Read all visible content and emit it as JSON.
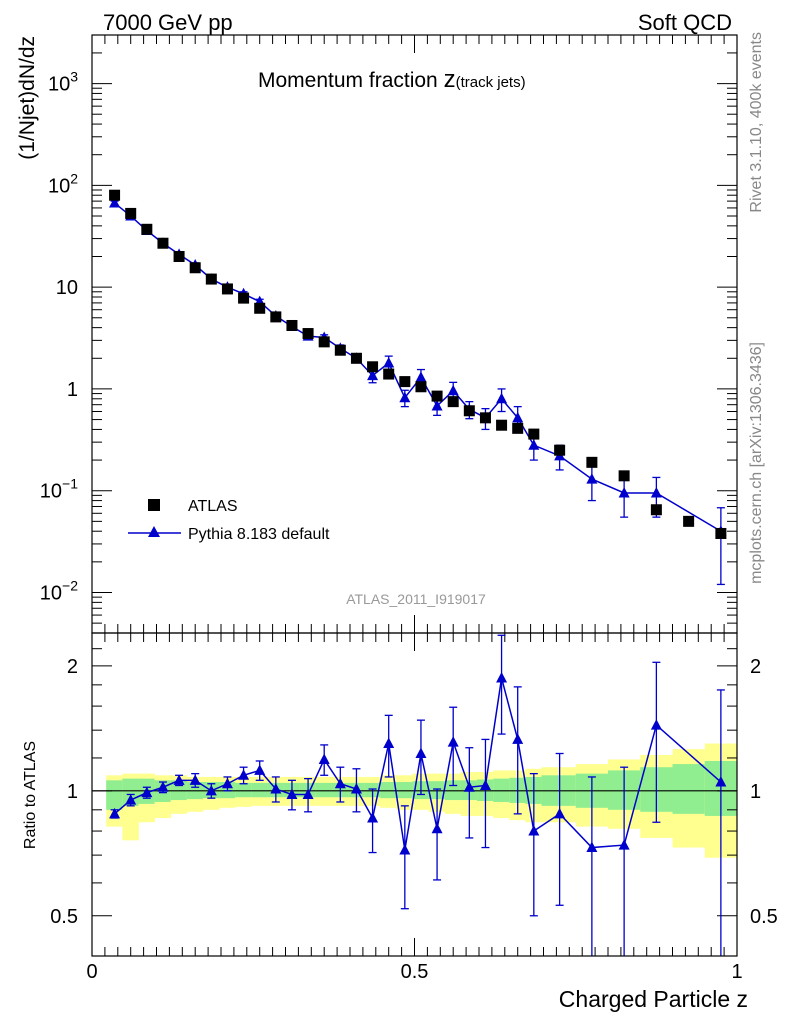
{
  "header": {
    "left": "7000 GeV pp",
    "right": "Soft QCD"
  },
  "side": {
    "rivet": "Rivet 3.1.10,  400k events",
    "mcplots": "mcplots.cern.ch [arXiv:1306.3436]"
  },
  "chart_data": {
    "type": "scatter",
    "title_main": "Momentum fraction ",
    "title_z": "z",
    "title_sub": "(track jets)",
    "ylabel": "(1/Njet)dN/dz",
    "xlabel": "Charged Particle z",
    "ratio_ylabel": "Ratio to ATLAS",
    "watermark": "ATLAS_2011_I919017",
    "xlim": [
      0,
      1
    ],
    "ylim_log": [
      0.004,
      3000
    ],
    "ratio_ylim": [
      0.4,
      2.4
    ],
    "x_ticks": [
      {
        "v": 0,
        "label": "0"
      },
      {
        "v": 0.5,
        "label": "0.5"
      },
      {
        "v": 1,
        "label": "1"
      }
    ],
    "y_ticks": [
      {
        "v": 0.01,
        "base": "10",
        "exp": "−2"
      },
      {
        "v": 0.1,
        "base": "10",
        "exp": "−1"
      },
      {
        "v": 1,
        "base": "1",
        "exp": ""
      },
      {
        "v": 10,
        "base": "10",
        "exp": ""
      },
      {
        "v": 100,
        "base": "10",
        "exp": "2"
      },
      {
        "v": 1000,
        "base": "10",
        "exp": "3"
      }
    ],
    "ratio_ticks": [
      {
        "v": 0.5,
        "label": "0.5"
      },
      {
        "v": 1,
        "label": "1"
      },
      {
        "v": 2,
        "label": "2"
      }
    ],
    "legend": {
      "atlas": "ATLAS",
      "pythia": "Pythia 8.183 default",
      "atlas_color": "#000000",
      "pythia_color": "#0000cc"
    },
    "atlas": {
      "name": "ATLAS",
      "x": [
        0.035,
        0.06,
        0.085,
        0.11,
        0.135,
        0.16,
        0.185,
        0.21,
        0.235,
        0.26,
        0.285,
        0.31,
        0.335,
        0.36,
        0.385,
        0.41,
        0.435,
        0.46,
        0.485,
        0.51,
        0.535,
        0.56,
        0.585,
        0.61,
        0.635,
        0.66,
        0.685,
        0.725,
        0.775,
        0.825,
        0.875,
        0.925,
        0.975
      ],
      "y": [
        80,
        53,
        37,
        27,
        20,
        15.5,
        12,
        9.6,
        7.8,
        6.2,
        5.1,
        4.2,
        3.5,
        2.9,
        2.4,
        2.0,
        1.65,
        1.4,
        1.18,
        1.05,
        0.85,
        0.75,
        0.61,
        0.52,
        0.44,
        0.41,
        0.36,
        0.25,
        0.19,
        0.14,
        0.065,
        0.05,
        0.038
      ]
    },
    "pythia": {
      "name": "Pythia 8.183 default",
      "x": [
        0.035,
        0.06,
        0.085,
        0.11,
        0.135,
        0.16,
        0.185,
        0.21,
        0.235,
        0.26,
        0.285,
        0.31,
        0.335,
        0.36,
        0.385,
        0.41,
        0.435,
        0.46,
        0.485,
        0.51,
        0.535,
        0.56,
        0.585,
        0.61,
        0.635,
        0.66,
        0.685,
        0.725,
        0.775,
        0.825,
        0.875,
        0.975
      ],
      "y": [
        67,
        50,
        36,
        27,
        21,
        16.5,
        12,
        10,
        8.6,
        7.2,
        5.2,
        4.1,
        3.3,
        3.2,
        2.5,
        2.0,
        1.35,
        1.8,
        0.82,
        1.3,
        0.68,
        0.96,
        0.63,
        0.52,
        0.8,
        0.52,
        0.28,
        0.22,
        0.13,
        0.095,
        0.095,
        0.04
      ],
      "err_lo": [
        3,
        2,
        1.5,
        1,
        1,
        0.8,
        0.5,
        0.5,
        0.4,
        0.4,
        0.3,
        0.2,
        0.2,
        0.2,
        0.2,
        0.2,
        0.2,
        0.3,
        0.15,
        0.25,
        0.13,
        0.2,
        0.12,
        0.12,
        0.2,
        0.15,
        0.08,
        0.06,
        0.05,
        0.04,
        0.04,
        0.028
      ],
      "err_hi": [
        3,
        2,
        1.5,
        1,
        1,
        0.8,
        0.5,
        0.5,
        0.4,
        0.4,
        0.3,
        0.2,
        0.2,
        0.2,
        0.2,
        0.2,
        0.2,
        0.3,
        0.15,
        0.25,
        0.13,
        0.2,
        0.12,
        0.12,
        0.2,
        0.15,
        0.08,
        0.06,
        0.05,
        0.04,
        0.04,
        0.028
      ]
    },
    "ratio": {
      "y": [
        0.88,
        0.95,
        0.99,
        1.02,
        1.06,
        1.06,
        1.0,
        1.04,
        1.09,
        1.12,
        1.01,
        0.98,
        0.98,
        1.19,
        1.04,
        1.01,
        0.86,
        1.3,
        0.72,
        1.23,
        0.81,
        1.31,
        1.02,
        1.03,
        1.87,
        1.33,
        0.8,
        0.88,
        0.73,
        0.74,
        1.44,
        1.05
      ],
      "err_lo": [
        0.02,
        0.03,
        0.03,
        0.03,
        0.03,
        0.04,
        0.04,
        0.04,
        0.05,
        0.06,
        0.07,
        0.08,
        0.09,
        0.1,
        0.1,
        0.12,
        0.15,
        0.22,
        0.2,
        0.25,
        0.2,
        0.28,
        0.25,
        0.3,
        0.5,
        0.45,
        0.3,
        0.35,
        0.35,
        0.4,
        0.6,
        0.7
      ],
      "err_hi": [
        0.02,
        0.03,
        0.03,
        0.03,
        0.03,
        0.04,
        0.04,
        0.04,
        0.05,
        0.06,
        0.07,
        0.08,
        0.09,
        0.1,
        0.1,
        0.12,
        0.15,
        0.22,
        0.2,
        0.25,
        0.2,
        0.28,
        0.25,
        0.3,
        0.5,
        0.45,
        0.3,
        0.35,
        0.35,
        0.4,
        0.6,
        0.7
      ]
    },
    "bands": {
      "x_edges": [
        0.022,
        0.047,
        0.072,
        0.097,
        0.122,
        0.147,
        0.172,
        0.197,
        0.222,
        0.247,
        0.272,
        0.297,
        0.322,
        0.347,
        0.372,
        0.397,
        0.422,
        0.447,
        0.472,
        0.497,
        0.522,
        0.547,
        0.572,
        0.597,
        0.622,
        0.647,
        0.672,
        0.697,
        0.75,
        0.8,
        0.85,
        0.9,
        0.95,
        1.0
      ],
      "green_lo": [
        0.9,
        0.92,
        0.93,
        0.94,
        0.95,
        0.955,
        0.96,
        0.96,
        0.965,
        0.965,
        0.965,
        0.965,
        0.965,
        0.965,
        0.965,
        0.965,
        0.965,
        0.96,
        0.96,
        0.955,
        0.955,
        0.95,
        0.95,
        0.945,
        0.94,
        0.935,
        0.93,
        0.92,
        0.91,
        0.9,
        0.89,
        0.88,
        0.87
      ],
      "green_hi": [
        1.06,
        1.07,
        1.07,
        1.06,
        1.06,
        1.05,
        1.05,
        1.05,
        1.045,
        1.045,
        1.045,
        1.045,
        1.045,
        1.045,
        1.045,
        1.045,
        1.045,
        1.05,
        1.05,
        1.055,
        1.055,
        1.06,
        1.06,
        1.065,
        1.07,
        1.075,
        1.08,
        1.09,
        1.1,
        1.12,
        1.14,
        1.16,
        1.18
      ],
      "yellow_lo": [
        0.82,
        0.76,
        0.84,
        0.86,
        0.88,
        0.89,
        0.9,
        0.91,
        0.915,
        0.92,
        0.92,
        0.92,
        0.92,
        0.92,
        0.92,
        0.92,
        0.92,
        0.91,
        0.9,
        0.9,
        0.89,
        0.88,
        0.87,
        0.87,
        0.86,
        0.85,
        0.84,
        0.84,
        0.82,
        0.81,
        0.77,
        0.73,
        0.69
      ],
      "yellow_hi": [
        1.09,
        1.1,
        1.1,
        1.09,
        1.09,
        1.08,
        1.08,
        1.08,
        1.08,
        1.08,
        1.08,
        1.08,
        1.08,
        1.08,
        1.08,
        1.08,
        1.08,
        1.09,
        1.09,
        1.1,
        1.1,
        1.1,
        1.11,
        1.11,
        1.12,
        1.12,
        1.13,
        1.14,
        1.16,
        1.19,
        1.22,
        1.26,
        1.3
      ],
      "green_color": "#90ee90",
      "yellow_color": "#ffff90"
    }
  }
}
